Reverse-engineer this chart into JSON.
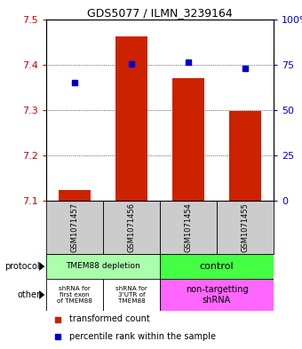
{
  "title": "GDS5077 / ILMN_3239164",
  "samples": [
    "GSM1071457",
    "GSM1071456",
    "GSM1071454",
    "GSM1071455"
  ],
  "bar_values": [
    7.123,
    7.463,
    7.37,
    7.298
  ],
  "percentile_values": [
    65,
    75.5,
    76.5,
    73
  ],
  "y_min": 7.1,
  "y_max": 7.5,
  "y_ticks": [
    7.1,
    7.2,
    7.3,
    7.4,
    7.5
  ],
  "y2_ticks": [
    0,
    25,
    50,
    75,
    100
  ],
  "bar_color": "#cc2200",
  "dot_color": "#0000cc",
  "bar_bottom": 7.1,
  "protocol_color_light": "#aaffaa",
  "protocol_color_bright": "#44ff44",
  "other_color_left": "#ffffff",
  "other_color_right": "#ff66ff",
  "sample_label_bg": "#cccccc",
  "row_label_protocol": "protocol",
  "row_label_other": "other",
  "legend_bar_label": "transformed count",
  "legend_dot_label": "percentile rank within the sample"
}
